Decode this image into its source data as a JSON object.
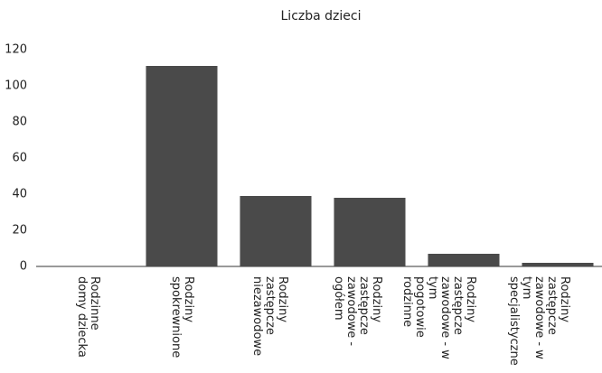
{
  "chart_data": {
    "type": "bar",
    "title": "Liczba dzieci",
    "categories": [
      "Rodzinne domy dziecka",
      "Rodziny spokrewnione",
      "Rodziny zastępcze niezawodowe",
      "Rodziny zastępcze zawodowe - ogółem",
      "Rodziny zastępcze zawodowe - w tym pogotowie rodzinne",
      "Rodziny zastępcze zawodowe - w tym specjalistyczne"
    ],
    "values": [
      0,
      111,
      39,
      38,
      7,
      2
    ],
    "color": "#4a4a4a",
    "ylim": [
      0,
      120
    ],
    "yticks": [
      0,
      20,
      40,
      60,
      80,
      100,
      120
    ],
    "grid": false
  }
}
